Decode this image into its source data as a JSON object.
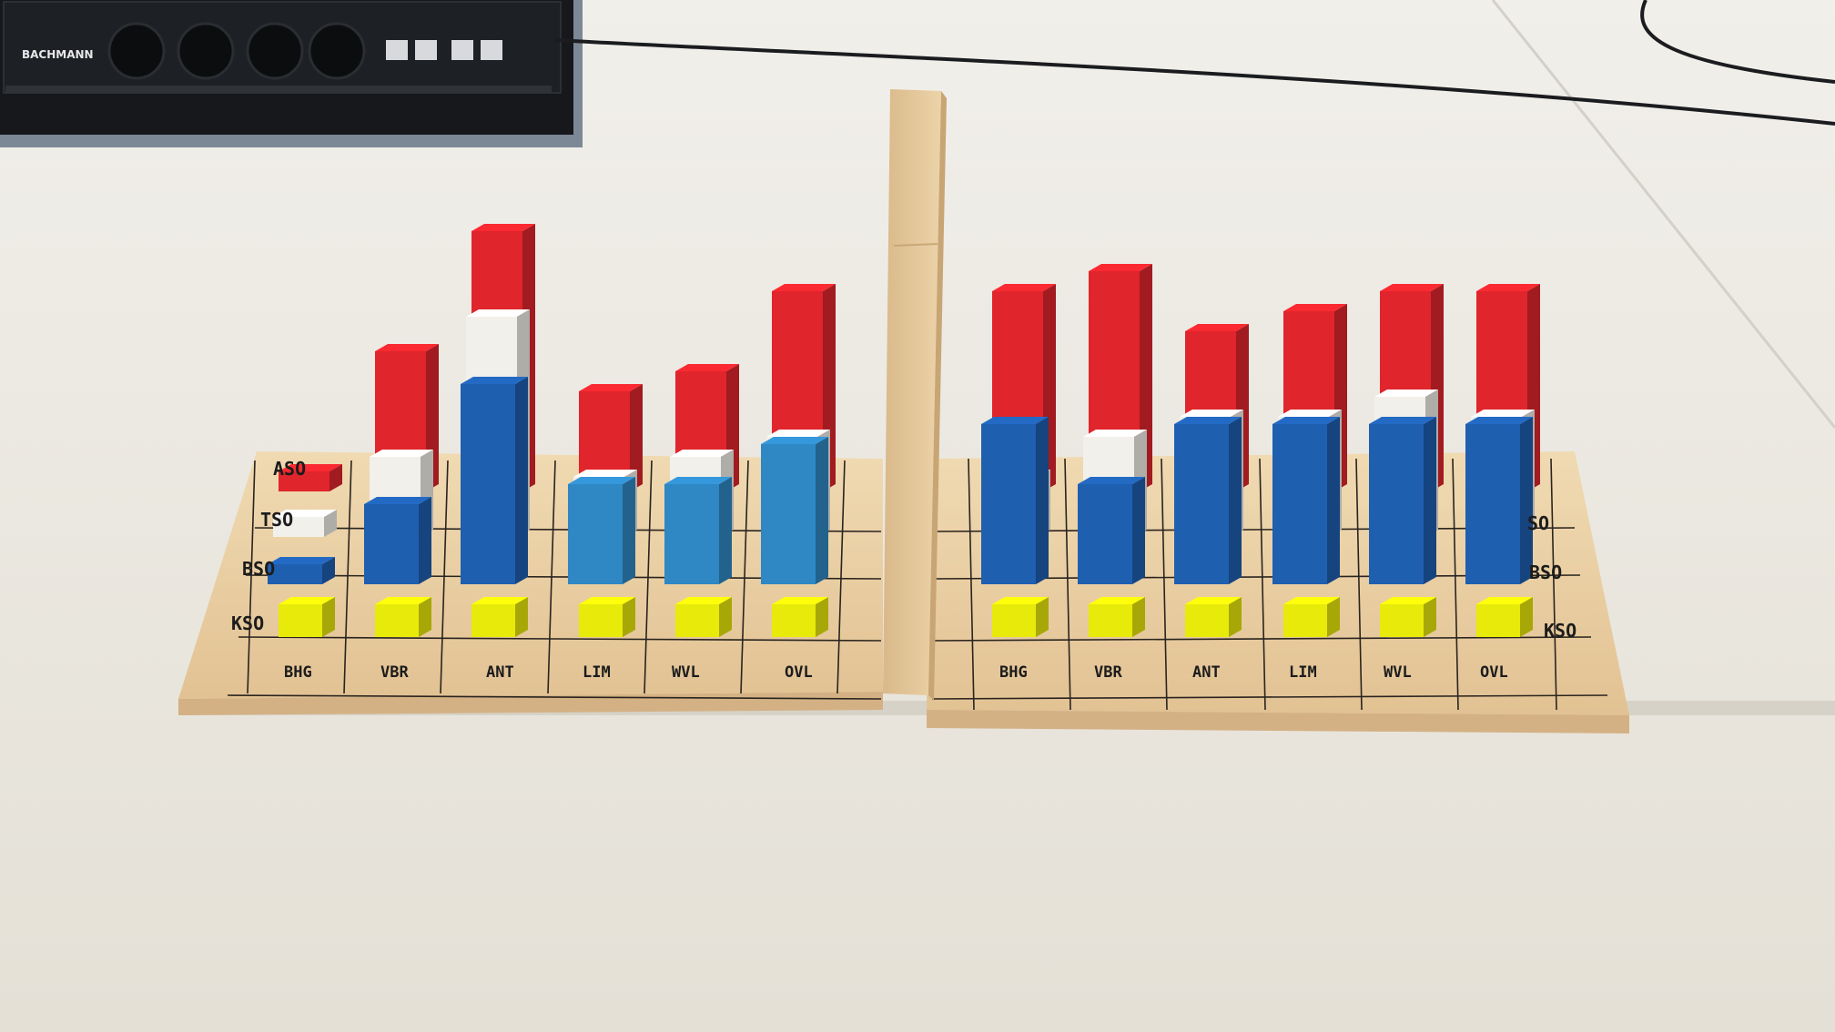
{
  "power_strip": {
    "brand": "BACHMANN"
  },
  "board": {
    "left": {
      "row_labels": [
        "ASO",
        "TSO",
        "BSO",
        "KSO"
      ],
      "column_labels": [
        "BHG",
        "VBR",
        "ANT",
        "LIM",
        "WVL",
        "OVL"
      ]
    },
    "right": {
      "row_labels": [
        "SO",
        "BSO",
        "KSO"
      ],
      "column_labels": [
        "BHG",
        "VBR",
        "ANT",
        "LIM",
        "WVL",
        "OVL"
      ]
    }
  },
  "colors": {
    "aso": "#e0252c",
    "tso": "#f2f0ea",
    "bso": "#1f5fb0",
    "bso_light": "#2f88c4",
    "kso": "#e8ea0a",
    "wood": "#ebd2a6"
  },
  "bars": {
    "left": [
      {
        "col": 0,
        "aso": 1,
        "tso": 1,
        "bso": 1,
        "kso": 1
      },
      {
        "col": 1,
        "aso": 7,
        "tso": 4,
        "bso": 4,
        "kso": 1
      },
      {
        "col": 2,
        "aso": 13,
        "tso": 11,
        "bso": 10,
        "kso": 1
      },
      {
        "col": 3,
        "aso": 5,
        "tso": 3,
        "bso": 5,
        "kso": 1
      },
      {
        "col": 4,
        "aso": 6,
        "tso": 4,
        "bso": 5,
        "kso": 1
      },
      {
        "col": 5,
        "aso": 10,
        "tso": 5,
        "bso": 7,
        "kso": 1
      }
    ],
    "right": [
      {
        "col": 0,
        "aso": 10,
        "tso": 3,
        "bso": 8,
        "kso": 1
      },
      {
        "col": 1,
        "aso": 11,
        "tso": 5,
        "bso": 5,
        "kso": 1
      },
      {
        "col": 2,
        "aso": 8,
        "tso": 6,
        "bso": 8,
        "kso": 1
      },
      {
        "col": 3,
        "aso": 9,
        "tso": 6,
        "bso": 8,
        "kso": 1
      },
      {
        "col": 4,
        "aso": 10,
        "tso": 7,
        "bso": 8,
        "kso": 1
      },
      {
        "col": 5,
        "aso": 10,
        "tso": 6,
        "bso": 8,
        "kso": 1
      }
    ]
  }
}
